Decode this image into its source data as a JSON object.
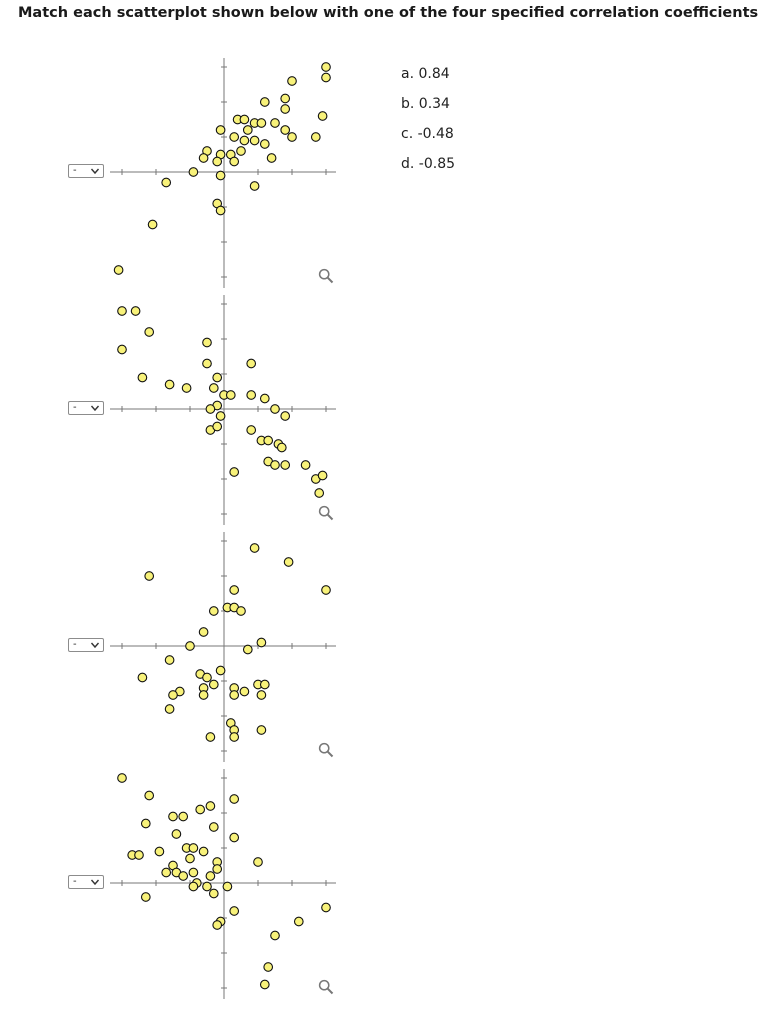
{
  "instruction": "Match each scatterplot shown below with one of the four specified correlation coefficients.",
  "options": [
    "a. 0.84",
    "b. 0.34",
    "c. -0.48",
    "d. -0.85"
  ],
  "select_value": "-",
  "colors": {
    "point_fill": "#f8f27a",
    "point_stroke": "#111111",
    "axis": "#777777"
  },
  "icons": {
    "zoom": "magnifier-icon",
    "dropdown": "chevron-down-icon"
  },
  "chart_data": [
    {
      "type": "scatter",
      "title": "",
      "xlabel": "",
      "ylabel": "",
      "xlim": [
        -3.5,
        3.5
      ],
      "ylim": [
        -3.2,
        3.2
      ],
      "grid": false,
      "points": [
        [
          3.0,
          3.0
        ],
        [
          3.0,
          2.7
        ],
        [
          2.0,
          2.6
        ],
        [
          1.2,
          2.0
        ],
        [
          1.8,
          2.1
        ],
        [
          1.8,
          1.8
        ],
        [
          2.9,
          1.6
        ],
        [
          -0.1,
          1.2
        ],
        [
          0.4,
          1.5
        ],
        [
          0.6,
          1.5
        ],
        [
          0.9,
          1.4
        ],
        [
          1.1,
          1.4
        ],
        [
          1.5,
          1.4
        ],
        [
          1.8,
          1.2
        ],
        [
          0.7,
          1.2
        ],
        [
          2.0,
          1.0
        ],
        [
          2.7,
          1.0
        ],
        [
          0.3,
          1.0
        ],
        [
          0.6,
          0.9
        ],
        [
          0.9,
          0.9
        ],
        [
          1.2,
          0.8
        ],
        [
          -0.5,
          0.6
        ],
        [
          -0.1,
          0.5
        ],
        [
          0.2,
          0.5
        ],
        [
          0.5,
          0.6
        ],
        [
          -0.6,
          0.4
        ],
        [
          -0.2,
          0.3
        ],
        [
          0.3,
          0.3
        ],
        [
          1.4,
          0.4
        ],
        [
          -0.9,
          0.0
        ],
        [
          -0.1,
          -0.1
        ],
        [
          -1.7,
          -0.3
        ],
        [
          0.9,
          -0.4
        ],
        [
          -0.2,
          -0.9
        ],
        [
          -0.1,
          -1.1
        ],
        [
          -2.1,
          -1.5
        ],
        [
          -3.1,
          -2.8
        ]
      ]
    },
    {
      "type": "scatter",
      "title": "",
      "xlabel": "",
      "ylabel": "",
      "xlim": [
        -3.5,
        3.5
      ],
      "ylim": [
        -3.2,
        3.2
      ],
      "grid": false,
      "points": [
        [
          -3.0,
          2.8
        ],
        [
          -2.6,
          2.8
        ],
        [
          -2.2,
          2.2
        ],
        [
          -3.0,
          1.7
        ],
        [
          -0.5,
          1.9
        ],
        [
          -0.5,
          1.3
        ],
        [
          0.8,
          1.3
        ],
        [
          -2.4,
          0.9
        ],
        [
          -1.6,
          0.7
        ],
        [
          -1.1,
          0.6
        ],
        [
          -0.2,
          0.9
        ],
        [
          -0.3,
          0.6
        ],
        [
          0.0,
          0.4
        ],
        [
          0.2,
          0.4
        ],
        [
          0.8,
          0.4
        ],
        [
          1.2,
          0.3
        ],
        [
          -0.2,
          0.1
        ],
        [
          -0.4,
          0.0
        ],
        [
          -0.1,
          -0.2
        ],
        [
          1.5,
          0.0
        ],
        [
          1.8,
          -0.2
        ],
        [
          -0.4,
          -0.6
        ],
        [
          -0.2,
          -0.5
        ],
        [
          0.8,
          -0.6
        ],
        [
          1.1,
          -0.9
        ],
        [
          1.3,
          -0.9
        ],
        [
          1.6,
          -1.0
        ],
        [
          1.7,
          -1.1
        ],
        [
          1.3,
          -1.5
        ],
        [
          1.5,
          -1.6
        ],
        [
          1.8,
          -1.6
        ],
        [
          2.4,
          -1.6
        ],
        [
          0.3,
          -1.8
        ],
        [
          2.7,
          -2.0
        ],
        [
          2.9,
          -1.9
        ],
        [
          2.8,
          -2.4
        ]
      ]
    },
    {
      "type": "scatter",
      "title": "",
      "xlabel": "",
      "ylabel": "",
      "xlim": [
        -3.5,
        3.5
      ],
      "ylim": [
        -3.2,
        3.2
      ],
      "grid": false,
      "points": [
        [
          0.9,
          2.8
        ],
        [
          1.9,
          2.4
        ],
        [
          -2.2,
          2.0
        ],
        [
          3.0,
          1.6
        ],
        [
          0.3,
          1.6
        ],
        [
          -0.3,
          1.0
        ],
        [
          0.1,
          1.1
        ],
        [
          0.3,
          1.1
        ],
        [
          0.5,
          1.0
        ],
        [
          -0.6,
          0.4
        ],
        [
          1.1,
          0.1
        ],
        [
          0.7,
          -0.1
        ],
        [
          -1.0,
          0.0
        ],
        [
          -1.6,
          -0.4
        ],
        [
          -2.4,
          -0.9
        ],
        [
          -0.7,
          -0.8
        ],
        [
          -0.5,
          -0.9
        ],
        [
          -0.3,
          -1.1
        ],
        [
          -0.6,
          -1.2
        ],
        [
          -0.1,
          -0.7
        ],
        [
          0.3,
          -1.2
        ],
        [
          0.3,
          -1.4
        ],
        [
          0.6,
          -1.3
        ],
        [
          1.0,
          -1.1
        ],
        [
          1.2,
          -1.1
        ],
        [
          1.1,
          -1.4
        ],
        [
          -1.3,
          -1.3
        ],
        [
          -1.5,
          -1.4
        ],
        [
          -0.6,
          -1.4
        ],
        [
          -1.6,
          -1.8
        ],
        [
          0.2,
          -2.2
        ],
        [
          0.3,
          -2.4
        ],
        [
          1.1,
          -2.4
        ],
        [
          -0.4,
          -2.6
        ],
        [
          0.3,
          -2.6
        ]
      ]
    },
    {
      "type": "scatter",
      "title": "",
      "xlabel": "",
      "ylabel": "",
      "xlim": [
        -3.5,
        3.5
      ],
      "ylim": [
        -3.2,
        3.2
      ],
      "grid": false,
      "points": [
        [
          -3.0,
          3.0
        ],
        [
          -2.2,
          2.5
        ],
        [
          -0.4,
          2.2
        ],
        [
          -0.7,
          2.1
        ],
        [
          0.3,
          2.4
        ],
        [
          -1.5,
          1.9
        ],
        [
          -1.2,
          1.9
        ],
        [
          -2.3,
          1.7
        ],
        [
          -0.3,
          1.6
        ],
        [
          -1.4,
          1.4
        ],
        [
          0.3,
          1.3
        ],
        [
          -1.1,
          1.0
        ],
        [
          -0.9,
          1.0
        ],
        [
          -0.6,
          0.9
        ],
        [
          -2.7,
          0.8
        ],
        [
          -2.5,
          0.8
        ],
        [
          -1.9,
          0.9
        ],
        [
          -1.0,
          0.7
        ],
        [
          -0.2,
          0.6
        ],
        [
          -1.5,
          0.5
        ],
        [
          -1.4,
          0.3
        ],
        [
          -1.7,
          0.3
        ],
        [
          -1.2,
          0.2
        ],
        [
          -0.9,
          0.3
        ],
        [
          -0.8,
          0.0
        ],
        [
          -0.4,
          0.2
        ],
        [
          -0.2,
          0.4
        ],
        [
          1.0,
          0.6
        ],
        [
          -0.5,
          -0.1
        ],
        [
          -0.9,
          -0.1
        ],
        [
          -0.3,
          -0.3
        ],
        [
          0.1,
          -0.1
        ],
        [
          -2.3,
          -0.4
        ],
        [
          0.3,
          -0.8
        ],
        [
          -0.1,
          -1.1
        ],
        [
          -0.2,
          -1.2
        ],
        [
          3.0,
          -0.7
        ],
        [
          2.2,
          -1.1
        ],
        [
          1.5,
          -1.5
        ],
        [
          1.3,
          -2.4
        ],
        [
          1.2,
          -2.9
        ]
      ]
    }
  ]
}
